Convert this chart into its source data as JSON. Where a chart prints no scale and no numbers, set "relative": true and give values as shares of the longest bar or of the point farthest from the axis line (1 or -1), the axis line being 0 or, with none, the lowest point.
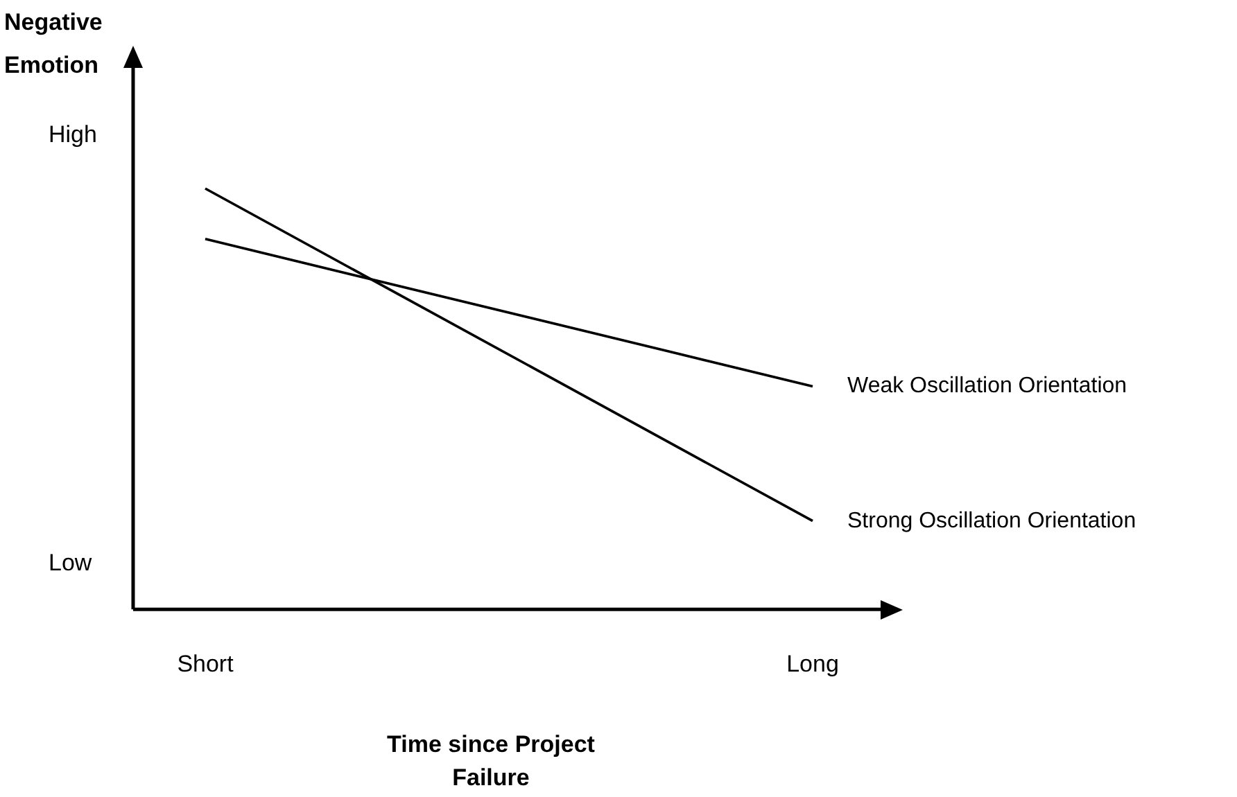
{
  "chart_data": {
    "type": "line",
    "relative": true,
    "ylabel": "Negative Emotion",
    "xlabel": "Time since Project Failure",
    "categories": [
      "Short",
      "Long"
    ],
    "annotations": [
      "High",
      "Low"
    ],
    "legend": false,
    "marker": "none",
    "series": [
      {
        "name": "Strong Oscillation Orientation",
        "color": "#000000",
        "values": [
          1,
          0.21
        ]
      },
      {
        "name": "Weak Oscillation Orientation",
        "color": "#000000",
        "values": [
          0.88,
          0.53
        ]
      }
    ]
  }
}
